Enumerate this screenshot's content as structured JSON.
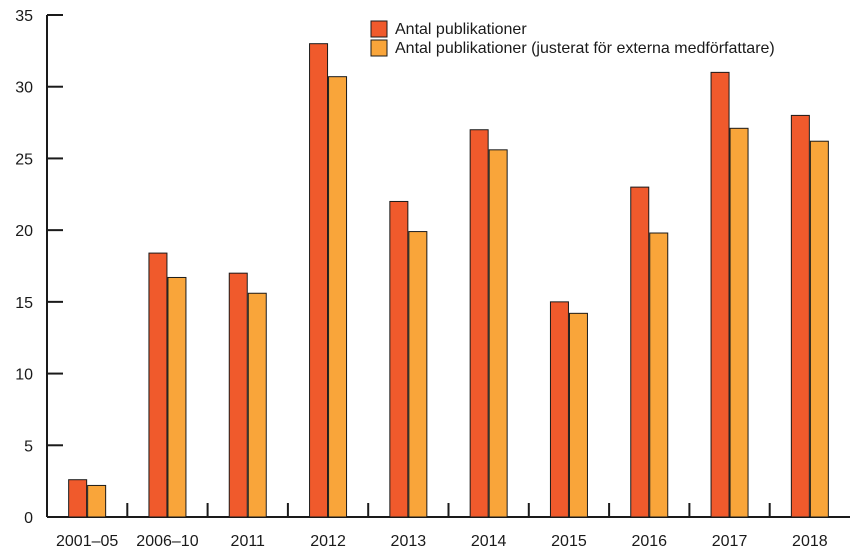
{
  "chart_data": {
    "type": "bar",
    "title": "",
    "xlabel": "",
    "ylabel": "",
    "categories": [
      "2001–05",
      "2006–10",
      "2011",
      "2012",
      "2013",
      "2014",
      "2015",
      "2016",
      "2017",
      "2018"
    ],
    "series": [
      {
        "name": "Antal publikationer",
        "color": "#f05a2c",
        "values": [
          2.6,
          18.4,
          17.0,
          33.0,
          22.0,
          27.0,
          15.0,
          23.0,
          31.0,
          28.0
        ]
      },
      {
        "name": "Antal publikationer (justerat för externa medförfattare)",
        "color": "#f9a53a",
        "values": [
          2.2,
          16.7,
          15.6,
          30.7,
          19.9,
          25.6,
          14.2,
          19.8,
          27.1,
          26.2
        ]
      }
    ],
    "ylim": [
      0,
      35
    ],
    "yticks": [
      0,
      5,
      10,
      15,
      20,
      25,
      30,
      35
    ],
    "grid": false,
    "legend_position": "top-right"
  }
}
